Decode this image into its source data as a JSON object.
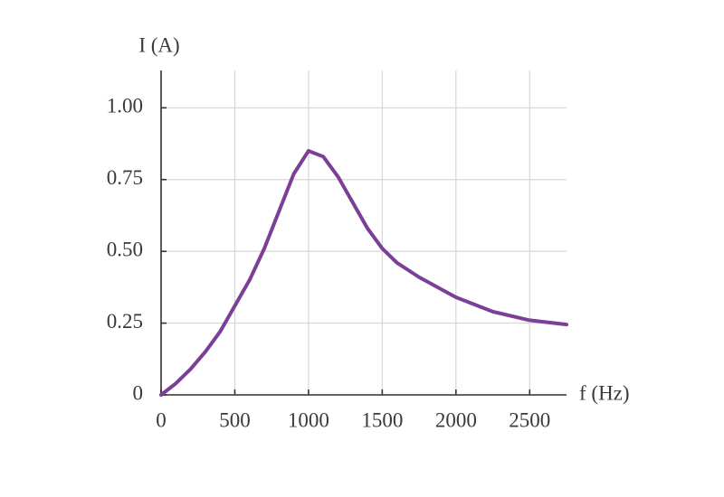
{
  "chart_data": {
    "type": "line",
    "x_label": "f (Hz)",
    "y_label": "I (A)",
    "x": [
      0,
      100,
      200,
      300,
      400,
      500,
      600,
      700,
      800,
      900,
      1000,
      1100,
      1200,
      1300,
      1400,
      1500,
      1600,
      1750,
      2000,
      2250,
      2500,
      2750
    ],
    "series": [
      {
        "color": "#7b3f98",
        "values": [
          0,
          0.04,
          0.09,
          0.15,
          0.22,
          0.31,
          0.4,
          0.51,
          0.64,
          0.77,
          0.85,
          0.83,
          0.76,
          0.67,
          0.58,
          0.51,
          0.46,
          0.41,
          0.34,
          0.29,
          0.26,
          0.245
        ]
      }
    ],
    "xlim": [
      0,
      2750
    ],
    "ylim": [
      0,
      1.13
    ],
    "xticks": [
      0,
      500,
      1000,
      1500,
      2000,
      2500
    ],
    "yticks": [
      0,
      0.25,
      {
        "value": 0.5,
        "label": "0.50"
      },
      0.75,
      {
        "value": 1,
        "label": "1.00"
      }
    ],
    "grid": true
  }
}
